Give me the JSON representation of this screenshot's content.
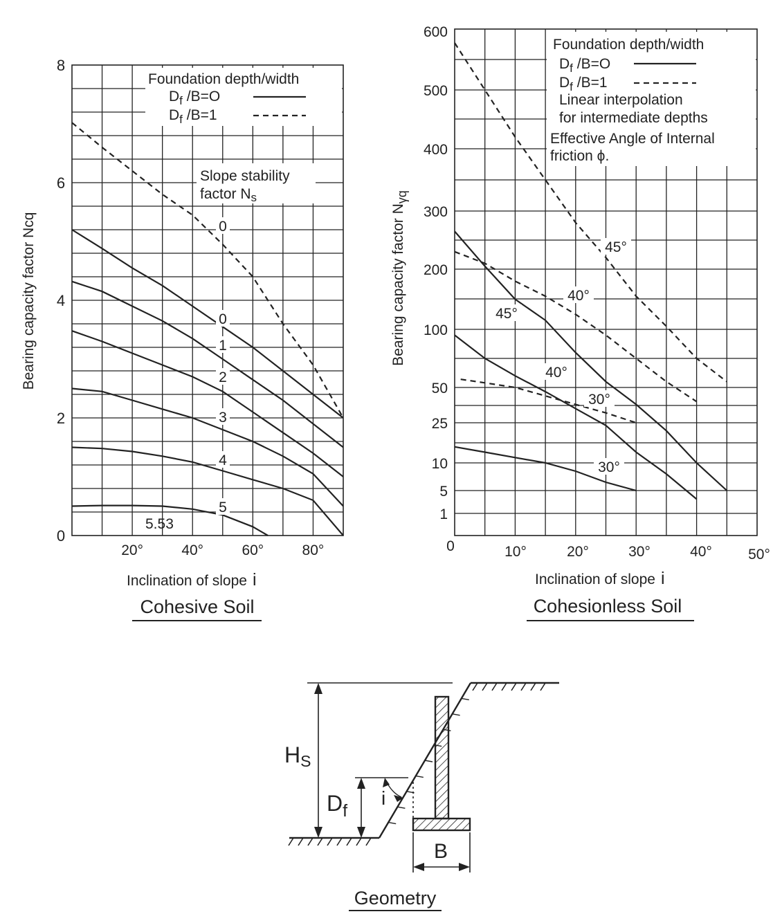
{
  "chart_data": [
    {
      "id": "cohesive",
      "type": "line",
      "title": "Cohesive Soil",
      "xlabel": "Inclination of slope",
      "xlabel_symbol": "i",
      "ylabel": "Bearing capacity factor Ncq",
      "xlim": [
        0,
        90
      ],
      "ylim": [
        0,
        8
      ],
      "x_ticks": [
        20,
        40,
        60,
        80
      ],
      "x_tick_labels": [
        "20°",
        "40°",
        "60°",
        "80°"
      ],
      "y_ticks": [
        0,
        2,
        4,
        6,
        8
      ],
      "y_tick_labels": [
        "0",
        "2",
        "4",
        "6",
        "8"
      ],
      "grid": true,
      "legend_placement": "top-right",
      "legend": {
        "title": "Foundation depth/width",
        "items": [
          {
            "label": "Df /B=O",
            "style": "solid"
          },
          {
            "label": "Df /B=1",
            "style": "dashed"
          }
        ]
      },
      "annotation": "Slope stability factor Ns",
      "series": [
        {
          "label": "0",
          "style": "dashed",
          "points": [
            [
              0,
              7.02
            ],
            [
              10,
              6.6
            ],
            [
              20,
              6.2
            ],
            [
              30,
              5.8
            ],
            [
              40,
              5.45
            ],
            [
              50,
              4.95
            ],
            [
              60,
              4.4
            ],
            [
              70,
              3.6
            ],
            [
              80,
              2.9
            ],
            [
              90,
              2.0
            ]
          ]
        },
        {
          "label": "0",
          "style": "solid",
          "points": [
            [
              0,
              5.2
            ],
            [
              10,
              4.88
            ],
            [
              20,
              4.55
            ],
            [
              30,
              4.25
            ],
            [
              40,
              3.9
            ],
            [
              50,
              3.55
            ],
            [
              60,
              3.2
            ],
            [
              70,
              2.8
            ],
            [
              80,
              2.4
            ],
            [
              90,
              2.0
            ]
          ]
        },
        {
          "label": "1",
          "style": "solid",
          "points": [
            [
              0,
              4.32
            ],
            [
              10,
              4.15
            ],
            [
              20,
              3.9
            ],
            [
              30,
              3.65
            ],
            [
              40,
              3.35
            ],
            [
              50,
              3.0
            ],
            [
              60,
              2.65
            ],
            [
              70,
              2.3
            ],
            [
              80,
              1.9
            ],
            [
              90,
              1.5
            ]
          ]
        },
        {
          "label": "2",
          "style": "solid",
          "points": [
            [
              0,
              3.48
            ],
            [
              10,
              3.3
            ],
            [
              20,
              3.1
            ],
            [
              30,
              2.9
            ],
            [
              40,
              2.7
            ],
            [
              50,
              2.45
            ],
            [
              60,
              2.1
            ],
            [
              70,
              1.75
            ],
            [
              80,
              1.4
            ],
            [
              90,
              1.0
            ]
          ]
        },
        {
          "label": "3",
          "style": "solid",
          "points": [
            [
              0,
              2.5
            ],
            [
              10,
              2.45
            ],
            [
              20,
              2.3
            ],
            [
              30,
              2.15
            ],
            [
              40,
              2.0
            ],
            [
              50,
              1.8
            ],
            [
              60,
              1.6
            ],
            [
              70,
              1.35
            ],
            [
              80,
              1.05
            ],
            [
              90,
              0.5
            ]
          ]
        },
        {
          "label": "4",
          "style": "solid",
          "points": [
            [
              0,
              1.5
            ],
            [
              10,
              1.48
            ],
            [
              20,
              1.43
            ],
            [
              30,
              1.35
            ],
            [
              40,
              1.25
            ],
            [
              50,
              1.1
            ],
            [
              60,
              0.95
            ],
            [
              70,
              0.8
            ],
            [
              80,
              0.6
            ],
            [
              90,
              0.0
            ]
          ]
        },
        {
          "label": "5",
          "style": "solid",
          "points": [
            [
              0,
              0.5
            ],
            [
              10,
              0.51
            ],
            [
              20,
              0.51
            ],
            [
              30,
              0.5
            ],
            [
              40,
              0.45
            ],
            [
              50,
              0.35
            ],
            [
              60,
              0.15
            ],
            [
              65,
              0.0
            ]
          ]
        }
      ],
      "extra_labels": [
        "5.53"
      ]
    },
    {
      "id": "cohesionless",
      "type": "line",
      "title": "Cohesionless Soil",
      "xlabel": "Inclination of slope",
      "xlabel_symbol": "i",
      "ylabel": "Bearing capacity factor Nγq",
      "xlim": [
        0,
        50
      ],
      "x_ticks": [
        0,
        10,
        20,
        30,
        40,
        50
      ],
      "x_tick_labels": [
        "0",
        "10°",
        "20°",
        "30°",
        "40°",
        "50°"
      ],
      "y_tick_labels": [
        "1",
        "5",
        "10",
        "25",
        "50",
        "100",
        "200",
        "300",
        "400",
        "500",
        "600"
      ],
      "y_tick_values": [
        1,
        5,
        10,
        25,
        50,
        100,
        200,
        300,
        400,
        500,
        600
      ],
      "y_scale": "custom",
      "grid": true,
      "legend_placement": "top-right",
      "legend": {
        "title": "Foundation depth/width",
        "items": [
          {
            "label": "Df /B=O",
            "style": "solid"
          },
          {
            "label": "Df /B=1",
            "style": "dashed"
          }
        ],
        "notes": [
          "Linear interpolation",
          "for intermediate depths",
          "Effective Angle of Internal",
          "friction ϕ."
        ]
      },
      "series": [
        {
          "label": "45°",
          "style": "dashed",
          "points": [
            [
              0,
              580
            ],
            [
              5,
              500
            ],
            [
              10,
              420
            ],
            [
              15,
              350
            ],
            [
              20,
              280
            ],
            [
              25,
              220
            ],
            [
              30,
              155
            ],
            [
              35,
              105
            ],
            [
              40,
              75
            ],
            [
              45,
              55
            ]
          ]
        },
        {
          "label": "40°",
          "style": "dashed",
          "points": [
            [
              0,
              230
            ],
            [
              5,
              210
            ],
            [
              10,
              180
            ],
            [
              15,
              155
            ],
            [
              20,
              125
            ],
            [
              25,
              95
            ],
            [
              30,
              75
            ],
            [
              35,
              55
            ],
            [
              40,
              40
            ]
          ]
        },
        {
          "label": "30°",
          "style": "dashed",
          "points": [
            [
              1,
              57
            ],
            [
              5,
              54
            ],
            [
              10,
              50
            ],
            [
              15,
              44
            ],
            [
              20,
              38
            ],
            [
              25,
              32
            ],
            [
              30,
              25
            ]
          ]
        },
        {
          "label": "45°",
          "style": "solid",
          "points": [
            [
              0,
              265
            ],
            [
              5,
              205
            ],
            [
              10,
              150
            ],
            [
              15,
              115
            ],
            [
              20,
              80
            ],
            [
              25,
              55
            ],
            [
              30,
              38
            ],
            [
              35,
              22
            ],
            [
              40,
              10
            ],
            [
              45,
              5
            ]
          ]
        },
        {
          "label": "40°",
          "style": "solid",
          "points": [
            [
              0,
              95
            ],
            [
              5,
              75
            ],
            [
              10,
              60
            ],
            [
              15,
              47
            ],
            [
              20,
              35
            ],
            [
              25,
              24
            ],
            [
              30,
              14
            ],
            [
              35,
              8
            ],
            [
              40,
              3.5
            ]
          ]
        },
        {
          "label": "30°",
          "style": "solid",
          "points": [
            [
              0,
              16
            ],
            [
              5,
              14
            ],
            [
              10,
              12
            ],
            [
              15,
              10
            ],
            [
              20,
              8.5
            ],
            [
              25,
              6.5
            ],
            [
              30,
              5
            ]
          ]
        }
      ]
    }
  ],
  "geometry": {
    "title": "Geometry",
    "labels": {
      "hs": "H",
      "hs_sub": "S",
      "df": "D",
      "df_sub": "f",
      "i": "i",
      "b": "B"
    }
  },
  "texts": {
    "cohesive_legend_title": "Foundation depth/width",
    "cohesive_legend_solid": "Df /B=O",
    "cohesive_legend_dash": "Df /B=1",
    "cohesive_annot1": "Slope stability",
    "cohesive_annot2": "factor Ns",
    "cohesionless_legend_title": "Foundation depth/width",
    "cohesionless_legend_solid": "Df /B=O",
    "cohesionless_legend_dash": "Df /B=1",
    "cohesionless_note1": "Linear interpolation",
    "cohesionless_note2": "for intermediate depths",
    "cohesionless_note3": "Effective Angle of Internal",
    "cohesionless_note4": "friction ϕ."
  }
}
